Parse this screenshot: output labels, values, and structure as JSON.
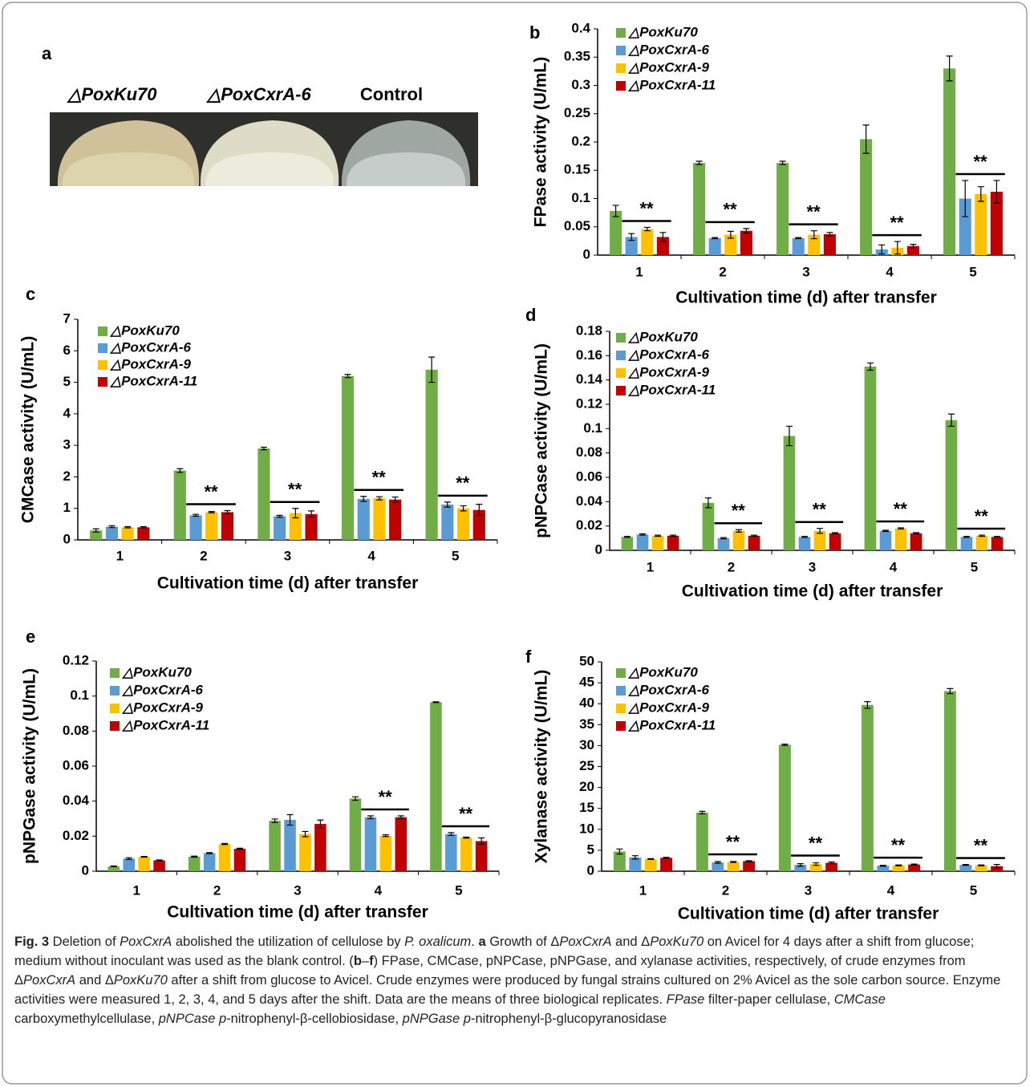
{
  "panel_a": {
    "label": "a",
    "labels": [
      "△PoxKu70",
      "△PoxCxrA-6",
      "Control"
    ]
  },
  "chart_data": [
    {
      "type": "bar",
      "panel": "b",
      "ylabel": "FPase activity (U/mL)",
      "xlabel": "Cultivation time (d) after transfer",
      "categories": [
        "1",
        "2",
        "3",
        "4",
        "5"
      ],
      "ylim": [
        0,
        0.4
      ],
      "yticks": [
        0,
        0.05,
        0.1,
        0.15,
        0.2,
        0.25,
        0.3,
        0.35,
        0.4
      ],
      "significance": [
        "**",
        "**",
        "**",
        "**",
        "**"
      ],
      "series": [
        {
          "name": "△PoxKu70",
          "color": "#70ad47",
          "values": [
            0.078,
            0.163,
            0.163,
            0.205,
            0.33
          ],
          "errors": [
            0.01,
            0.003,
            0.003,
            0.025,
            0.022
          ]
        },
        {
          "name": "△PoxCxrA-6",
          "color": "#5b9bd5",
          "values": [
            0.032,
            0.03,
            0.03,
            0.01,
            0.1
          ],
          "errors": [
            0.006,
            0.001,
            0.001,
            0.008,
            0.032
          ]
        },
        {
          "name": "△PoxCxrA-9",
          "color": "#ffc000",
          "values": [
            0.046,
            0.036,
            0.036,
            0.013,
            0.108
          ],
          "errors": [
            0.003,
            0.006,
            0.007,
            0.011,
            0.013
          ]
        },
        {
          "name": "△PoxCxrA-11",
          "color": "#c00000",
          "values": [
            0.032,
            0.043,
            0.037,
            0.016,
            0.112
          ],
          "errors": [
            0.008,
            0.004,
            0.003,
            0.003,
            0.02
          ]
        }
      ]
    },
    {
      "type": "bar",
      "panel": "c",
      "ylabel": "CMCase activity (U/mL)",
      "xlabel": "Cultivation time (d) after transfer",
      "categories": [
        "1",
        "2",
        "3",
        "4",
        "5"
      ],
      "ylim": [
        0,
        7
      ],
      "yticks": [
        0,
        1,
        2,
        3,
        4,
        5,
        6,
        7
      ],
      "significance": [
        null,
        "**",
        "**",
        "**",
        "**"
      ],
      "series": [
        {
          "name": "△PoxKu70",
          "color": "#70ad47",
          "values": [
            0.3,
            2.2,
            2.9,
            5.2,
            5.4
          ],
          "errors": [
            0.05,
            0.06,
            0.04,
            0.05,
            0.4
          ]
        },
        {
          "name": "△PoxCxrA-6",
          "color": "#5b9bd5",
          "values": [
            0.42,
            0.78,
            0.75,
            1.3,
            1.12
          ],
          "errors": [
            0.03,
            0.03,
            0.03,
            0.08,
            0.08
          ]
        },
        {
          "name": "△PoxCxrA-9",
          "color": "#ffc000",
          "values": [
            0.4,
            0.88,
            0.85,
            1.32,
            1.0
          ],
          "errors": [
            0.02,
            0.02,
            0.15,
            0.05,
            0.08
          ]
        },
        {
          "name": "△PoxCxrA-11",
          "color": "#c00000",
          "values": [
            0.4,
            0.88,
            0.82,
            1.28,
            0.95
          ],
          "errors": [
            0.02,
            0.05,
            0.1,
            0.08,
            0.18
          ]
        }
      ]
    },
    {
      "type": "bar",
      "panel": "d",
      "ylabel": "pNPCase activity (U/mL)",
      "xlabel": "Cultivation time (d) after transfer",
      "categories": [
        "1",
        "2",
        "3",
        "4",
        "5"
      ],
      "ylim": [
        0,
        0.18
      ],
      "yticks": [
        0,
        0.02,
        0.04,
        0.06,
        0.08,
        0.1,
        0.12,
        0.14,
        0.16,
        0.18
      ],
      "significance": [
        null,
        "**",
        "**",
        "**",
        "**"
      ],
      "series": [
        {
          "name": "△PoxKu70",
          "color": "#70ad47",
          "values": [
            0.011,
            0.039,
            0.094,
            0.151,
            0.107
          ],
          "errors": [
            0.0005,
            0.004,
            0.008,
            0.003,
            0.005
          ]
        },
        {
          "name": "△PoxCxrA-6",
          "color": "#5b9bd5",
          "values": [
            0.013,
            0.01,
            0.011,
            0.016,
            0.011
          ],
          "errors": [
            0.0005,
            0.0005,
            0.0005,
            0.0005,
            0.0005
          ]
        },
        {
          "name": "△PoxCxrA-9",
          "color": "#ffc000",
          "values": [
            0.012,
            0.016,
            0.016,
            0.018,
            0.012
          ],
          "errors": [
            0.0005,
            0.001,
            0.002,
            0.0005,
            0.0005
          ]
        },
        {
          "name": "△PoxCxrA-11",
          "color": "#c00000",
          "values": [
            0.012,
            0.012,
            0.014,
            0.014,
            0.011
          ],
          "errors": [
            0.0005,
            0.0005,
            0.0005,
            0.0005,
            0.0005
          ]
        }
      ]
    },
    {
      "type": "bar",
      "panel": "e",
      "ylabel": "pNPGase activity (U/mL)",
      "xlabel": "Cultivation time (d) after transfer",
      "categories": [
        "1",
        "2",
        "3",
        "4",
        "5"
      ],
      "ylim": [
        0,
        0.12
      ],
      "yticks": [
        0,
        0.02,
        0.04,
        0.06,
        0.08,
        0.1,
        0.12
      ],
      "significance": [
        null,
        null,
        null,
        "**",
        "**"
      ],
      "series": [
        {
          "name": "△PoxKu70",
          "color": "#70ad47",
          "values": [
            0.0028,
            0.0083,
            0.0288,
            0.0415,
            0.0965
          ],
          "errors": [
            0.0002,
            0.0003,
            0.001,
            0.001,
            0.0002
          ]
        },
        {
          "name": "△PoxCxrA-6",
          "color": "#5b9bd5",
          "values": [
            0.0072,
            0.0103,
            0.0293,
            0.0308,
            0.0212
          ],
          "errors": [
            0.0005,
            0.0003,
            0.003,
            0.0008,
            0.0008
          ]
        },
        {
          "name": "△PoxCxrA-9",
          "color": "#ffc000",
          "values": [
            0.0082,
            0.0155,
            0.0212,
            0.0203,
            0.0192
          ],
          "errors": [
            0.0002,
            0.0003,
            0.0015,
            0.0005,
            0.0003
          ]
        },
        {
          "name": "△PoxCxrA-11",
          "color": "#c00000",
          "values": [
            0.0062,
            0.0128,
            0.027,
            0.0308,
            0.0172
          ],
          "errors": [
            0.0002,
            0.0003,
            0.0022,
            0.0008,
            0.0018
          ]
        }
      ]
    },
    {
      "type": "bar",
      "panel": "f",
      "ylabel": "Xylanase activity (U/mL)",
      "xlabel": "Cultivation time (d) after transfer",
      "categories": [
        "1",
        "2",
        "3",
        "4",
        "5"
      ],
      "ylim": [
        0,
        50
      ],
      "yticks": [
        0,
        5,
        10,
        15,
        20,
        25,
        30,
        35,
        40,
        45,
        50
      ],
      "significance": [
        null,
        "**",
        "**",
        "**",
        "**"
      ],
      "series": [
        {
          "name": "△PoxKu70",
          "color": "#70ad47",
          "values": [
            4.7,
            14,
            30.2,
            39.7,
            43
          ],
          "errors": [
            0.6,
            0.3,
            0.15,
            0.8,
            0.6
          ]
        },
        {
          "name": "△PoxCxrA-6",
          "color": "#5b9bd5",
          "values": [
            3.3,
            2.1,
            1.5,
            1.3,
            1.5
          ],
          "errors": [
            0.4,
            0.2,
            0.3,
            0.1,
            0.1
          ]
        },
        {
          "name": "△PoxCxrA-9",
          "color": "#ffc000",
          "values": [
            2.9,
            2.2,
            1.7,
            1.4,
            1.4
          ],
          "errors": [
            0.1,
            0.1,
            0.3,
            0.1,
            0.1
          ]
        },
        {
          "name": "△PoxCxrA-11",
          "color": "#c00000",
          "values": [
            3.2,
            2.4,
            2.0,
            1.6,
            1.2
          ],
          "errors": [
            0.1,
            0.1,
            0.2,
            0.1,
            0.4
          ]
        }
      ]
    }
  ],
  "caption": [
    "Fig. 3",
    " Deletion of ",
    "PoxCxrA",
    " abolished the utilization of cellulose by ",
    "P. oxalicum",
    ". ",
    "a",
    " Growth of Δ",
    "PoxCxrA",
    " and Δ",
    "PoxKu70",
    " on Avicel for 4 days after a shift from glucose; medium without inoculant was used as the blank control. (",
    "b",
    "–",
    "f",
    ") FPase, CMCase, pNPCase, pNPGase, and xylanase activities, respectively, of crude enzymes from Δ",
    "PoxCxrA",
    " and Δ",
    "PoxKu70",
    " after a shift from glucose to Avicel. Crude enzymes were produced by fungal strains cultured on 2% Avicel as the sole carbon source. Enzyme activities were measured 1, 2, 3, 4, and 5 days after the shift. Data are the means of three biological replicates. ",
    "FPase",
    " filter-paper cellulase, ",
    "CMCase",
    " carboxymethylcellulase, ",
    "pNPCase p",
    "-nitrophenyl-β-cellobiosidase, ",
    "pNPGase p",
    "-nitrophenyl-β-glucopyranosidase"
  ]
}
